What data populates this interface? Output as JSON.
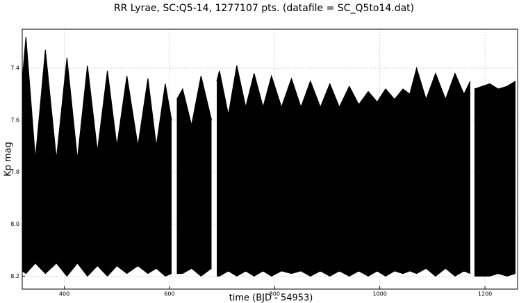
{
  "chart_data": {
    "type": "band",
    "title": "RR Lyrae, SC:Q5-14, 1277107 pts. (datafile = SC_Q5to14.dat)",
    "x_label": "time (BJD - 54953)",
    "y_label": "Kp mag",
    "x": [
      320,
      327,
      345,
      364,
      385,
      405,
      425,
      444,
      463,
      482,
      500,
      519,
      540,
      559,
      575,
      592,
      604,
      606,
      614,
      625,
      642,
      660,
      680,
      686,
      690,
      695,
      712,
      728,
      745,
      761,
      778,
      794,
      813,
      832,
      850,
      868,
      887,
      905,
      923,
      942,
      960,
      978,
      995,
      1011,
      1028,
      1044,
      1057,
      1070,
      1088,
      1106,
      1125,
      1143,
      1160,
      1172,
      1175,
      1180,
      1209,
      1225,
      1242,
      1258
    ],
    "series": [
      {
        "color": "#000000",
        "values": [
          7.45,
          7.28,
          7.75,
          7.33,
          7.75,
          7.36,
          7.75,
          7.39,
          7.72,
          7.41,
          7.7,
          7.43,
          7.7,
          7.44,
          7.7,
          7.46,
          7.6,
          null,
          7.52,
          7.48,
          7.62,
          7.43,
          7.6,
          null,
          7.45,
          7.41,
          7.58,
          7.39,
          7.55,
          7.42,
          7.55,
          7.43,
          7.55,
          7.44,
          7.55,
          7.45,
          7.55,
          7.46,
          7.55,
          7.47,
          7.54,
          7.49,
          7.53,
          7.48,
          7.52,
          7.48,
          7.5,
          7.4,
          7.52,
          7.42,
          7.52,
          7.42,
          7.5,
          7.45,
          null,
          7.48,
          7.46,
          7.48,
          7.47,
          7.45
        ]
      },
      {
        "color": "#000000",
        "values": [
          8.18,
          8.19,
          8.15,
          8.19,
          8.15,
          8.2,
          8.15,
          8.2,
          8.16,
          8.2,
          8.16,
          8.19,
          8.16,
          8.19,
          8.17,
          8.2,
          8.19,
          null,
          8.19,
          8.19,
          8.17,
          8.2,
          8.17,
          null,
          8.2,
          8.2,
          8.18,
          8.2,
          8.18,
          8.2,
          8.18,
          8.2,
          8.18,
          8.19,
          8.18,
          8.2,
          8.18,
          8.2,
          8.18,
          8.2,
          8.18,
          8.2,
          8.18,
          8.2,
          8.18,
          8.19,
          8.18,
          8.19,
          8.17,
          8.2,
          8.17,
          8.2,
          8.18,
          8.19,
          null,
          8.2,
          8.2,
          8.19,
          8.2,
          8.19
        ]
      }
    ],
    "xlim": [
      320,
      1262
    ],
    "ylim": [
      7.25,
      8.25
    ],
    "y_inverted": true,
    "xticks": [
      400,
      600,
      800,
      1000,
      1200
    ],
    "yticks": [
      7.4,
      7.6,
      7.8,
      {
        "value": 8,
        "label": "8.0"
      },
      8.2
    ],
    "grid": true
  }
}
